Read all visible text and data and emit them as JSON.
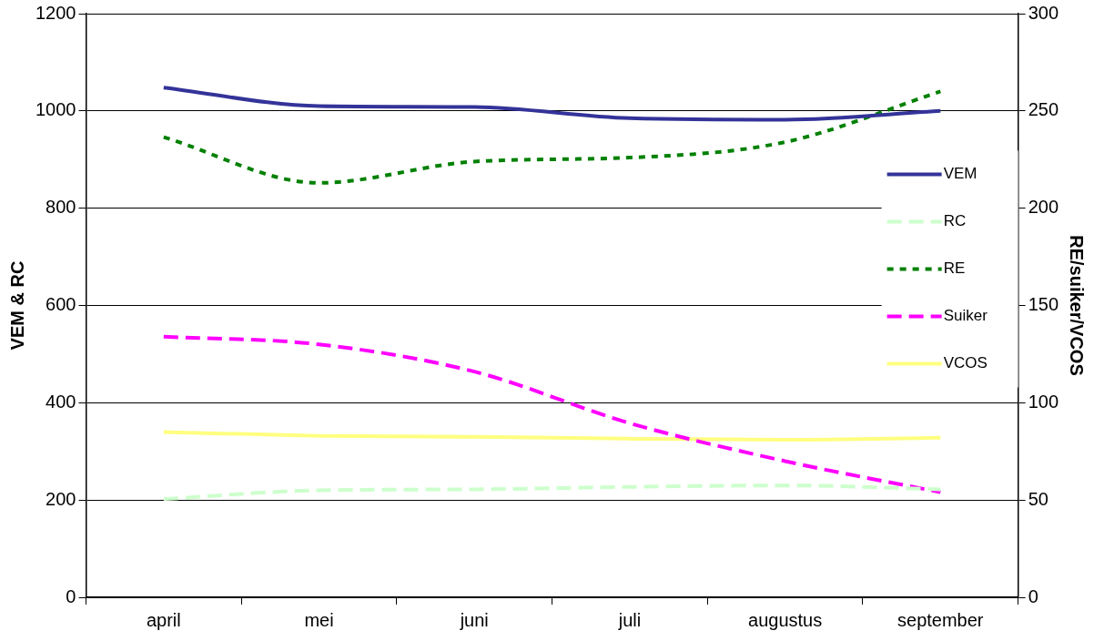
{
  "chart_data": {
    "type": "line",
    "ylabel": "VEM & RC",
    "y2label": "RE/suiker/VCOS",
    "categories": [
      "april",
      "mei",
      "juni",
      "juli",
      "augustus",
      "september"
    ],
    "ylim": [
      0,
      1200
    ],
    "yticks": [
      0,
      200,
      400,
      600,
      800,
      1000,
      1200
    ],
    "y2lim": [
      0,
      300
    ],
    "y2ticks": [
      0,
      50,
      100,
      150,
      200,
      250,
      300
    ],
    "grid": "y",
    "legend": "right",
    "marker": "none",
    "series": [
      {
        "name": "VEM",
        "color": "#333399",
        "line_style": "solid",
        "values": [
          1048,
          1010,
          1008,
          985,
          982,
          1000
        ]
      },
      {
        "name": "RC",
        "color": "#ccffcc",
        "line_style": "dashed",
        "values": [
          202,
          220,
          222,
          227,
          230,
          222
        ]
      },
      {
        "name": "RE",
        "color": "#008000",
        "line_style": "dotted",
        "axis": "y2",
        "values": [
          236.5,
          213,
          224,
          226,
          234,
          260
        ]
      },
      {
        "name": "Suiker",
        "color": "#ff00ff",
        "line_style": "dashed",
        "axis": "y2",
        "values": [
          134,
          130,
          116,
          89.5,
          70,
          54
        ]
      },
      {
        "name": "VCOS",
        "color": "#ffff80",
        "line_style": "solid",
        "axis": "y2",
        "values": [
          85,
          83,
          82.5,
          81.5,
          81,
          82
        ]
      }
    ]
  }
}
